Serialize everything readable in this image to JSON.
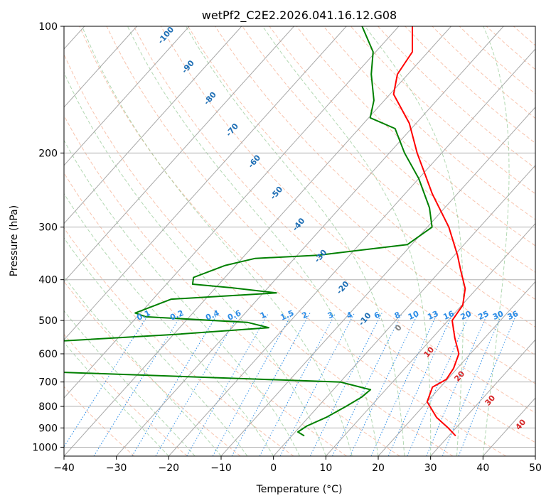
{
  "chart_data": {
    "type": "line",
    "subtype": "skew-t log-p diagram",
    "title": "wetPf2_C2E2.2026.041.16.12.G08",
    "xlabel": "Temperature (°C)",
    "ylabel": "Pressure (hPa)",
    "xlim": [
      -40,
      50
    ],
    "ylim": [
      1050,
      100
    ],
    "y_scale": "log",
    "x_ticks": [
      -40,
      -30,
      -20,
      -10,
      0,
      10,
      20,
      30,
      40,
      50
    ],
    "y_ticks": [
      100,
      200,
      300,
      400,
      500,
      600,
      700,
      800,
      900,
      1000
    ],
    "grid": true,
    "series": [
      {
        "color": "#ff0000",
        "points": [
          {
            "p": 940,
            "t": 31.3
          },
          {
            "p": 900,
            "t": 28.5
          },
          {
            "p": 850,
            "t": 24.5
          },
          {
            "p": 780,
            "t": 20.0
          },
          {
            "p": 720,
            "t": 18.5
          },
          {
            "p": 690,
            "t": 19.8
          },
          {
            "p": 650,
            "t": 19.3
          },
          {
            "p": 600,
            "t": 17.8
          },
          {
            "p": 550,
            "t": 14.3
          },
          {
            "p": 500,
            "t": 10.8
          },
          {
            "p": 460,
            "t": 10.2
          },
          {
            "p": 420,
            "t": 7.8
          },
          {
            "p": 380,
            "t": 3.8
          },
          {
            "p": 350,
            "t": 0.6
          },
          {
            "p": 300,
            "t": -5.9
          },
          {
            "p": 250,
            "t": -14.8
          },
          {
            "p": 200,
            "t": -24.7
          },
          {
            "p": 170,
            "t": -31.3
          },
          {
            "p": 145,
            "t": -39.3
          },
          {
            "p": 130,
            "t": -42.0
          },
          {
            "p": 115,
            "t": -43.0
          },
          {
            "p": 100,
            "t": -47.4
          }
        ]
      },
      {
        "color": "#008000",
        "points": [
          {
            "p": 940,
            "t": 2.4
          },
          {
            "p": 920,
            "t": 0.5
          },
          {
            "p": 890,
            "t": 1.2
          },
          {
            "p": 850,
            "t": 3.4
          },
          {
            "p": 800,
            "t": 5.3
          },
          {
            "p": 760,
            "t": 6.7
          },
          {
            "p": 730,
            "t": 7.1
          },
          {
            "p": 700,
            "t": 0.0
          },
          {
            "p": 680,
            "t": -30.0
          },
          {
            "p": 660,
            "t": -61.0
          },
          {
            "p": 560,
            "t": -61.0
          },
          {
            "p": 540,
            "t": -40.0
          },
          {
            "p": 520,
            "t": -23.0
          },
          {
            "p": 505,
            "t": -28.0
          },
          {
            "p": 490,
            "t": -48.3
          },
          {
            "p": 480,
            "t": -51.0
          },
          {
            "p": 445,
            "t": -46.5
          },
          {
            "p": 430,
            "t": -27.5
          },
          {
            "p": 418,
            "t": -37.0
          },
          {
            "p": 410,
            "t": -45.0
          },
          {
            "p": 395,
            "t": -46.0
          },
          {
            "p": 370,
            "t": -42.0
          },
          {
            "p": 356,
            "t": -37.5
          },
          {
            "p": 350,
            "t": -26.0
          },
          {
            "p": 330,
            "t": -10.8
          },
          {
            "p": 300,
            "t": -9.1
          },
          {
            "p": 270,
            "t": -12.9
          },
          {
            "p": 230,
            "t": -20.0
          },
          {
            "p": 200,
            "t": -27.1
          },
          {
            "p": 175,
            "t": -33.1
          },
          {
            "p": 165,
            "t": -39.7
          },
          {
            "p": 150,
            "t": -42.0
          },
          {
            "p": 130,
            "t": -47.0
          },
          {
            "p": 115,
            "t": -50.5
          },
          {
            "p": 100,
            "t": -57.0
          }
        ]
      }
    ],
    "isotherm_labels": [
      {
        "t": -100,
        "label": "-100"
      },
      {
        "t": -90,
        "label": "-90"
      },
      {
        "t": -80,
        "label": "-80"
      },
      {
        "t": -70,
        "label": "-70"
      },
      {
        "t": -60,
        "label": "-60"
      },
      {
        "t": -50,
        "label": "-50"
      },
      {
        "t": -40,
        "label": "-40"
      },
      {
        "t": -30,
        "label": "-30"
      },
      {
        "t": -20,
        "label": "-20"
      },
      {
        "t": -10,
        "label": "-10"
      }
    ],
    "mixing_ratio_labels": [
      "0.1",
      "0.2",
      "0.4",
      "0.6",
      "1",
      "1.5",
      "2",
      "3",
      "4",
      "6",
      "8",
      "10",
      "13",
      "16",
      "20",
      "25",
      "30",
      "36"
    ],
    "isotherm_labels_red": [
      {
        "t": 0,
        "label": "0"
      },
      {
        "t": 10,
        "label": "10"
      },
      {
        "t": 20,
        "label": "20"
      },
      {
        "t": 30,
        "label": "30"
      },
      {
        "t": 40,
        "label": "40"
      }
    ]
  }
}
